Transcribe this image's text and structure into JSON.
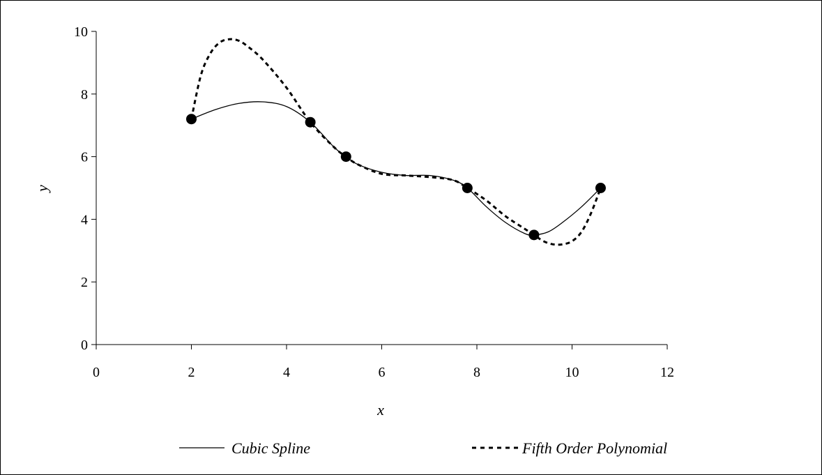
{
  "chart_data": {
    "type": "line",
    "title": "",
    "xlabel": "x",
    "ylabel": "y",
    "xlim": [
      0,
      12
    ],
    "ylim": [
      0,
      10
    ],
    "xticks": [
      "0",
      "2",
      "4",
      "6",
      "8",
      "10",
      "12"
    ],
    "yticks": [
      "0",
      "2",
      "4",
      "6",
      "8",
      "10"
    ],
    "grid": false,
    "legend_position": "bottom",
    "data_points": {
      "x": [
        2.0,
        4.5,
        5.25,
        7.8,
        9.2,
        10.6
      ],
      "y": [
        7.2,
        7.1,
        6.0,
        5.0,
        3.5,
        5.0
      ]
    },
    "series": [
      {
        "name": "Cubic Spline",
        "style": "solid",
        "color": "#000000",
        "x": [
          2.0,
          2.5,
          3.0,
          3.5,
          4.0,
          4.5,
          5.0,
          5.25,
          5.5,
          6.0,
          6.5,
          7.0,
          7.5,
          7.8,
          8.2,
          8.6,
          9.0,
          9.2,
          9.5,
          9.8,
          10.2,
          10.6
        ],
        "y": [
          7.2,
          7.5,
          7.7,
          7.75,
          7.6,
          7.1,
          6.3,
          6.0,
          5.75,
          5.5,
          5.4,
          5.4,
          5.25,
          5.0,
          4.4,
          3.9,
          3.55,
          3.5,
          3.6,
          3.9,
          4.4,
          5.0
        ]
      },
      {
        "name": "Fifth Order Polynomial",
        "style": "dashed",
        "color": "#000000",
        "x": [
          2.0,
          2.2,
          2.4,
          2.6,
          2.8,
          3.0,
          3.2,
          3.5,
          4.0,
          4.5,
          5.0,
          5.25,
          5.5,
          6.0,
          6.5,
          7.0,
          7.5,
          7.8,
          8.2,
          8.6,
          9.0,
          9.2,
          9.4,
          9.6,
          9.8,
          10.0,
          10.2,
          10.4,
          10.6
        ],
        "y": [
          7.2,
          8.6,
          9.3,
          9.65,
          9.75,
          9.7,
          9.5,
          9.1,
          8.2,
          7.1,
          6.3,
          6.0,
          5.75,
          5.45,
          5.4,
          5.35,
          5.25,
          5.0,
          4.6,
          4.1,
          3.7,
          3.5,
          3.3,
          3.2,
          3.2,
          3.3,
          3.6,
          4.2,
          5.0
        ]
      }
    ]
  }
}
